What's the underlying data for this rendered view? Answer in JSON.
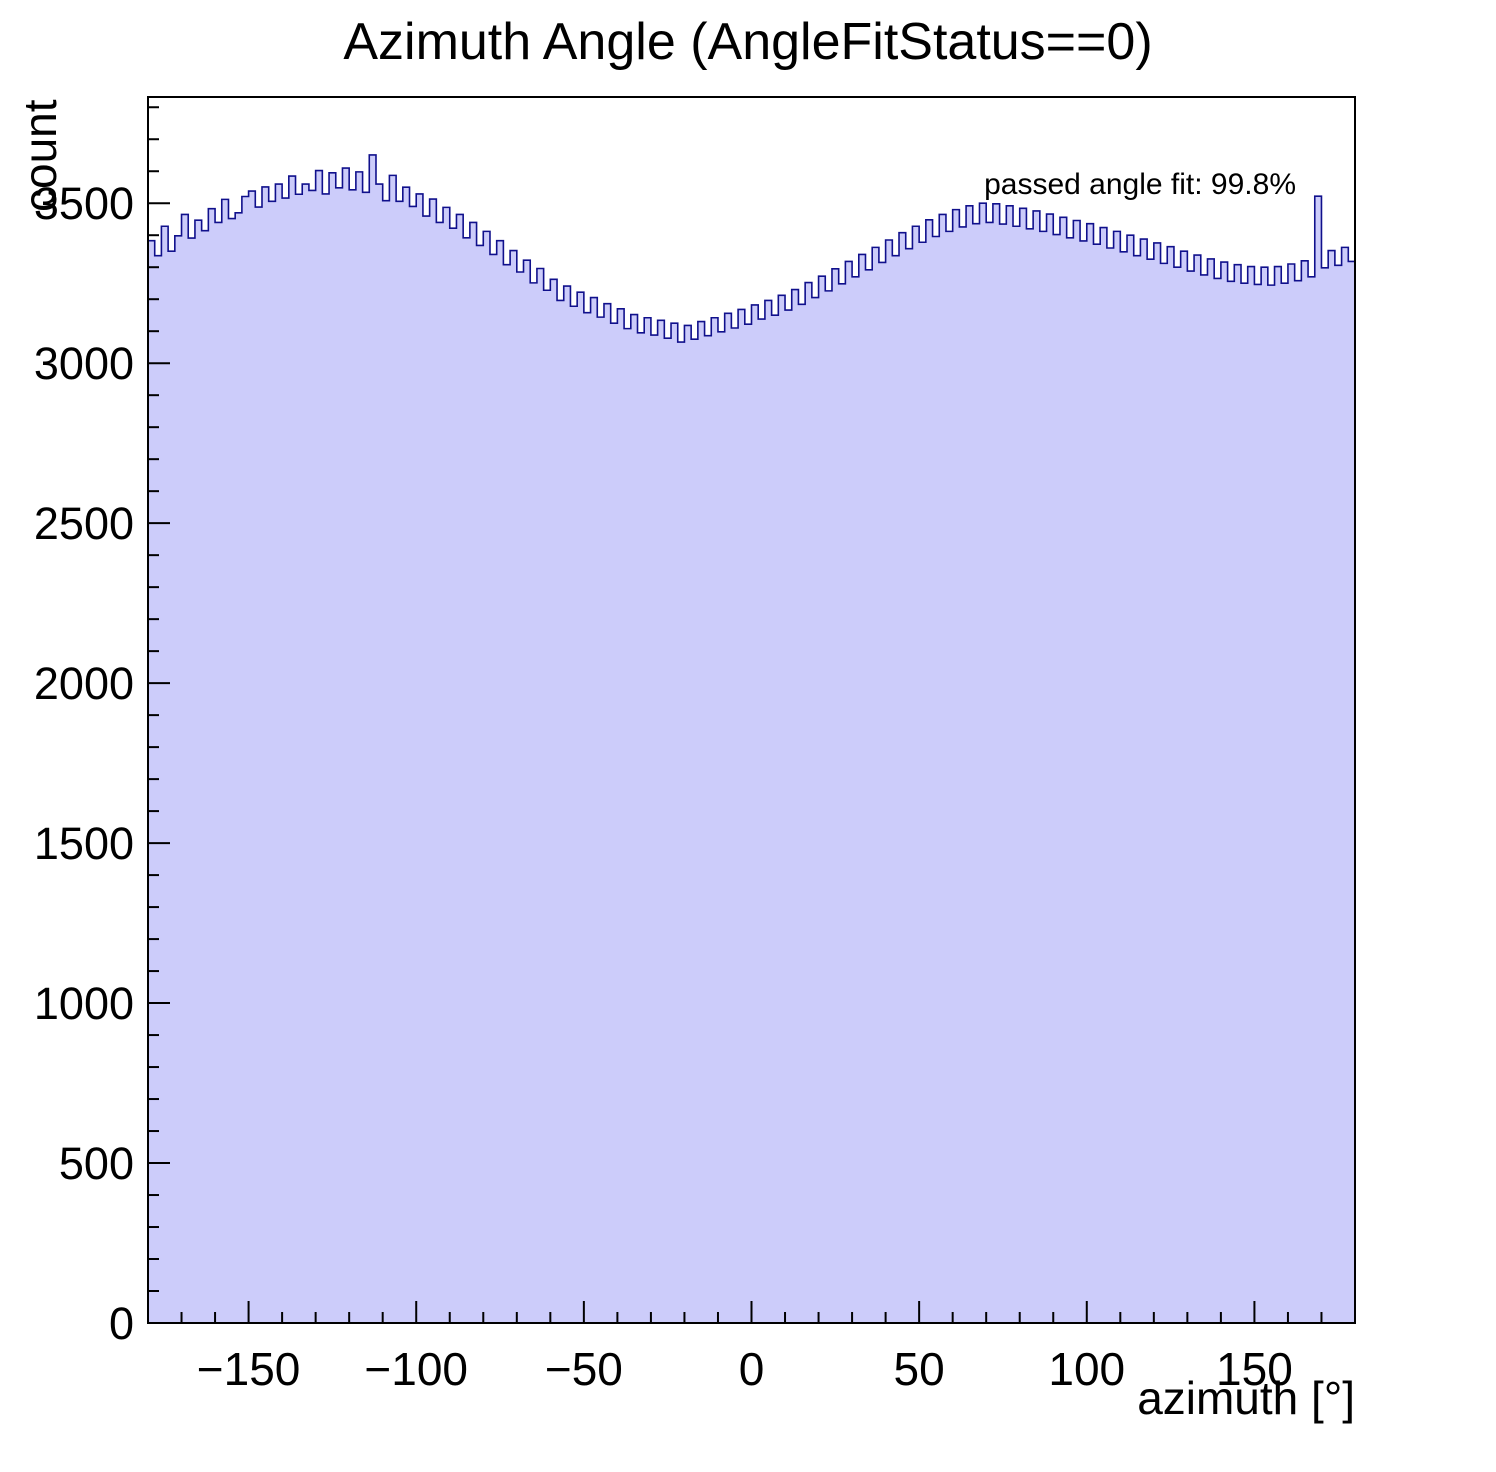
{
  "page": {
    "title": "Azimuth Angle (AngleFitStatus==0)"
  },
  "chart_data": {
    "type": "bar",
    "title": "Azimuth Angle (AngleFitStatus==0)",
    "xlabel": "azimuth [°]",
    "ylabel": "count",
    "annotation": "passed angle fit: 99.8%",
    "xlim": [
      -180,
      180
    ],
    "ylim": [
      0,
      3832
    ],
    "x_start": -180,
    "bin_width": 2,
    "grid": false,
    "legend_position": "none",
    "fill_color": "#ccccfa",
    "line_color": "#10108c",
    "frame_color": "#000000",
    "x_ticks": [
      -150,
      -100,
      -50,
      0,
      50,
      100,
      150
    ],
    "x_tick_labels": [
      "−150",
      "−100",
      "−50",
      "0",
      "50",
      "100",
      "150"
    ],
    "x_minor_step": 10,
    "y_ticks": [
      0,
      500,
      1000,
      1500,
      2000,
      2500,
      3000,
      3500
    ],
    "y_tick_labels": [
      "0",
      "500",
      "1000",
      "1500",
      "2000",
      "2500",
      "3000",
      "3500"
    ],
    "y_minor_step": 100,
    "values": [
      3383,
      3336,
      3428,
      3350,
      3398,
      3465,
      3391,
      3447,
      3414,
      3483,
      3440,
      3512,
      3452,
      3470,
      3521,
      3538,
      3488,
      3551,
      3506,
      3560,
      3516,
      3585,
      3528,
      3560,
      3540,
      3602,
      3529,
      3595,
      3548,
      3610,
      3542,
      3598,
      3534,
      3651,
      3560,
      3508,
      3587,
      3506,
      3550,
      3490,
      3529,
      3460,
      3513,
      3440,
      3487,
      3422,
      3465,
      3392,
      3440,
      3368,
      3412,
      3340,
      3383,
      3308,
      3352,
      3285,
      3322,
      3251,
      3296,
      3228,
      3262,
      3196,
      3241,
      3178,
      3222,
      3158,
      3205,
      3144,
      3186,
      3125,
      3170,
      3108,
      3152,
      3095,
      3142,
      3088,
      3134,
      3078,
      3125,
      3066,
      3118,
      3075,
      3130,
      3086,
      3142,
      3098,
      3156,
      3110,
      3168,
      3122,
      3182,
      3138,
      3196,
      3150,
      3212,
      3166,
      3230,
      3184,
      3252,
      3205,
      3272,
      3226,
      3295,
      3248,
      3318,
      3270,
      3340,
      3292,
      3362,
      3315,
      3385,
      3336,
      3408,
      3358,
      3428,
      3378,
      3448,
      3396,
      3465,
      3412,
      3480,
      3426,
      3492,
      3436,
      3500,
      3440,
      3498,
      3435,
      3492,
      3428,
      3484,
      3420,
      3476,
      3412,
      3466,
      3402,
      3456,
      3392,
      3446,
      3382,
      3436,
      3372,
      3424,
      3360,
      3412,
      3348,
      3400,
      3336,
      3388,
      3325,
      3376,
      3312,
      3364,
      3300,
      3350,
      3288,
      3338,
      3276,
      3326,
      3265,
      3316,
      3256,
      3308,
      3250,
      3302,
      3246,
      3300,
      3244,
      3302,
      3250,
      3310,
      3258,
      3320,
      3270,
      3522,
      3298,
      3352,
      3306,
      3362,
      3318
    ]
  }
}
